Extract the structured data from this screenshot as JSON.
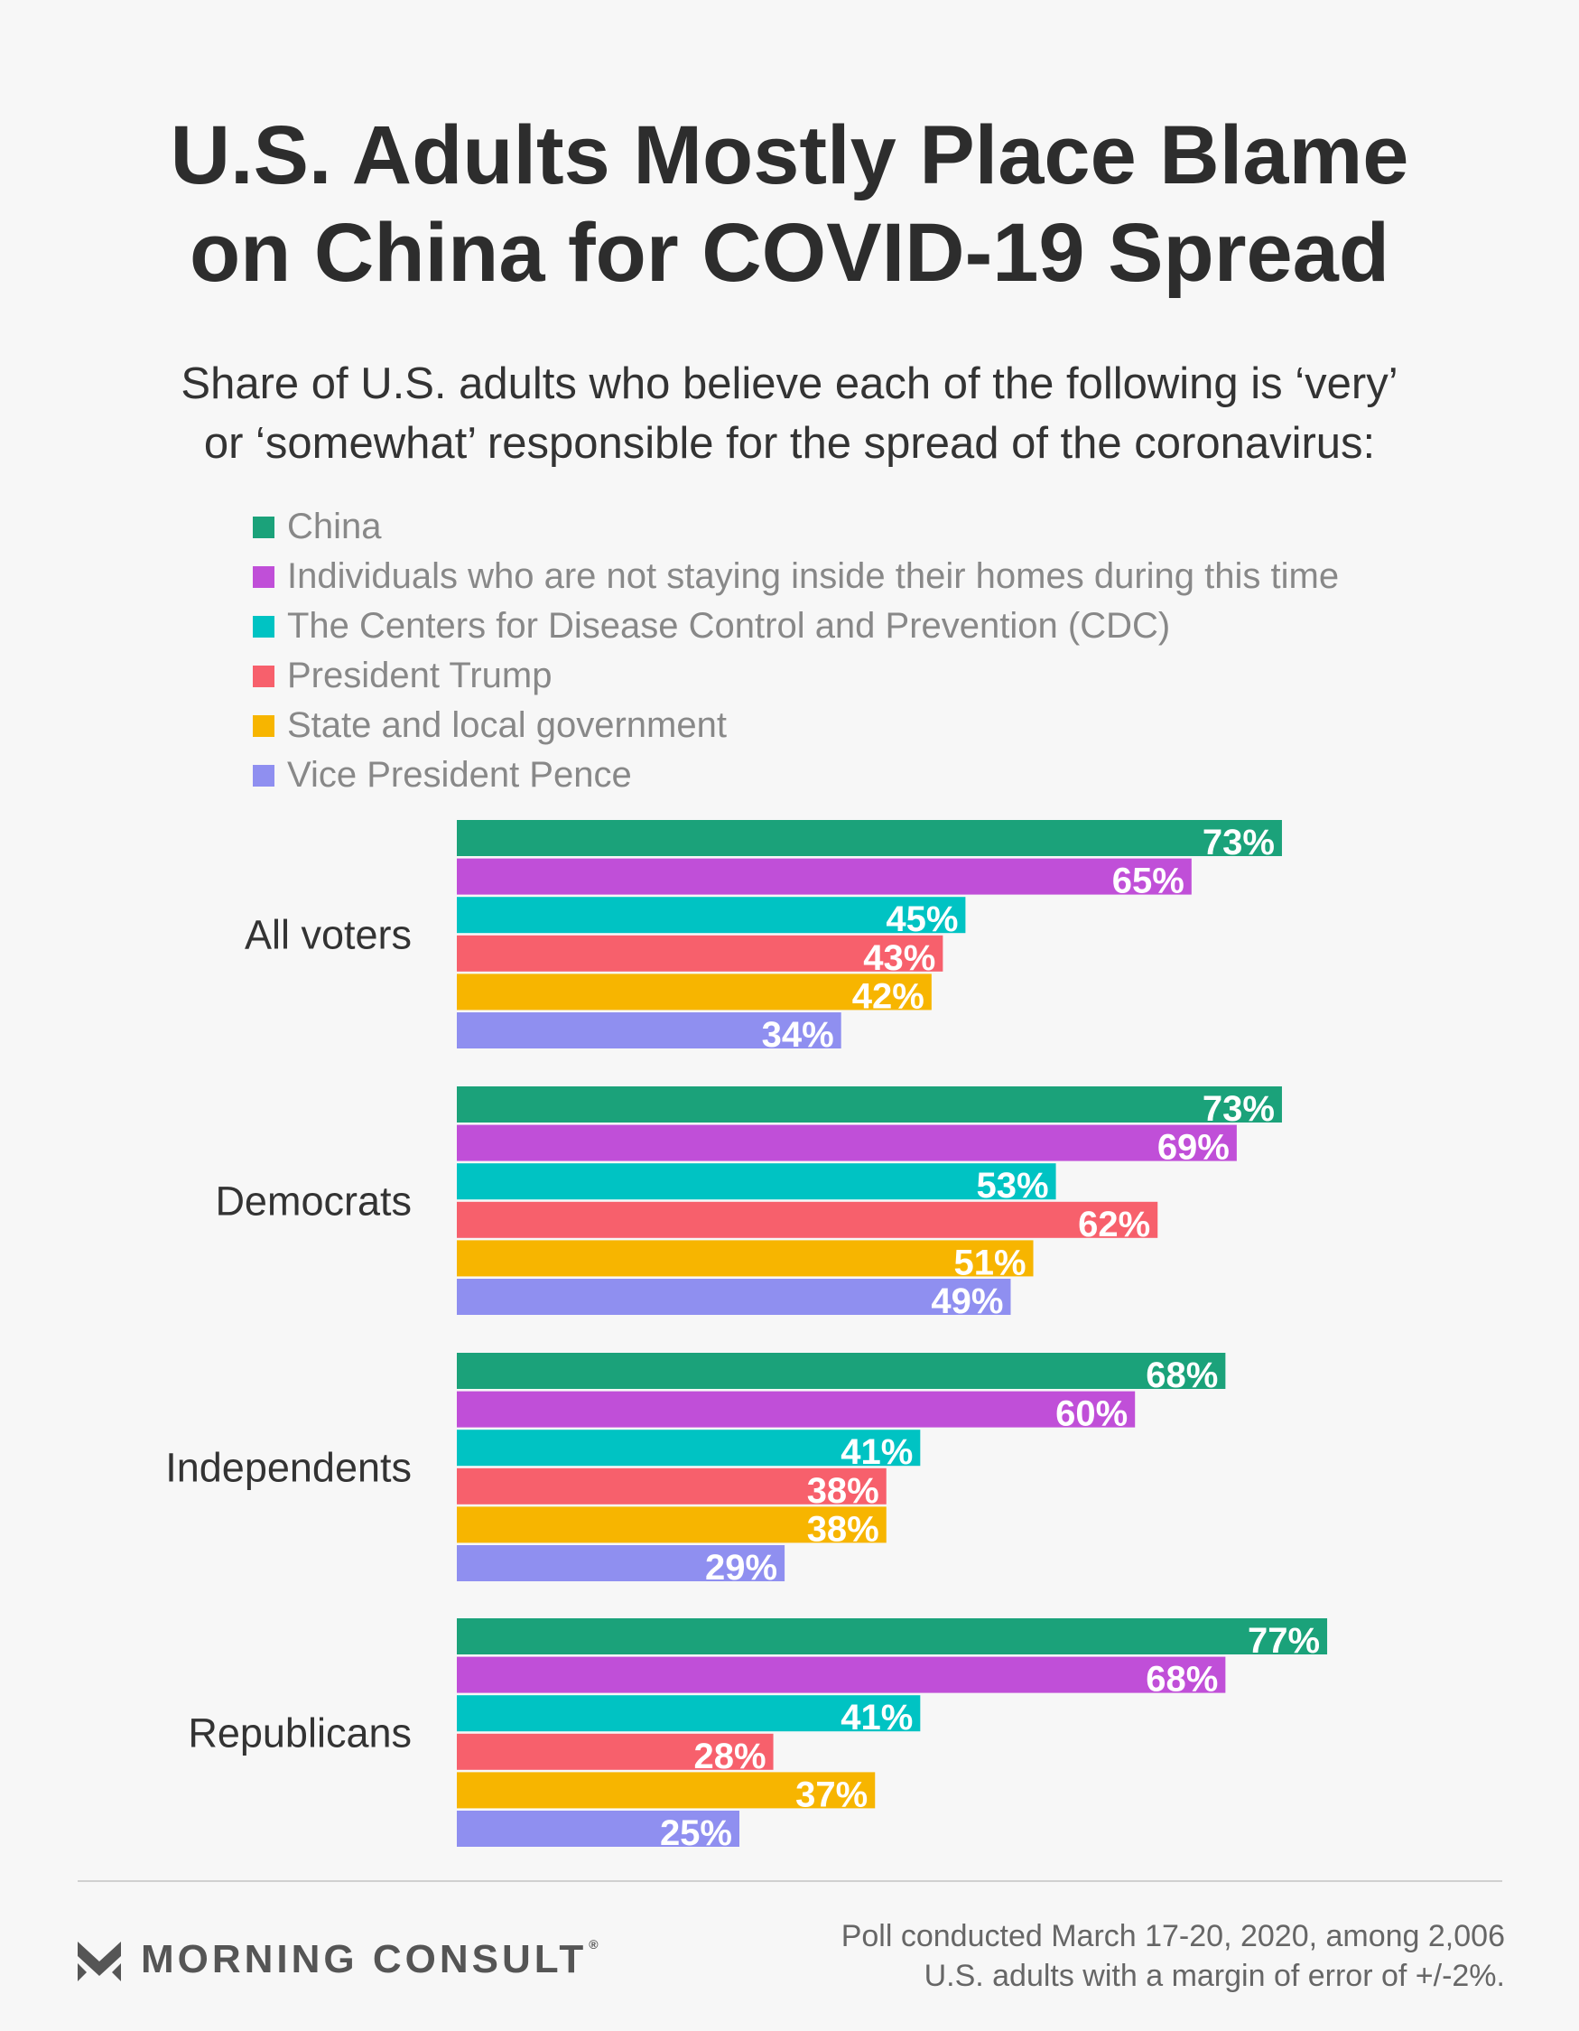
{
  "title_line1": "U.S. Adults Mostly Place Blame",
  "title_line2": "on China for COVID-19 Spread",
  "subtitle_line1": "Share of U.S. adults who believe each of the following is ‘very’",
  "subtitle_line2": "or ‘somewhat’ responsible for the spread of the coronavirus:",
  "chart_data": {
    "type": "bar",
    "orientation": "horizontal",
    "categories": [
      "All voters",
      "Democrats",
      "Independents",
      "Republicans"
    ],
    "series": [
      {
        "name": "China",
        "color": "#1ba27a",
        "values": [
          73,
          73,
          68,
          77
        ]
      },
      {
        "name": "Individuals who are not staying inside their homes during this time",
        "color": "#c04fd8",
        "values": [
          65,
          69,
          60,
          68
        ]
      },
      {
        "name": "The Centers for Disease Control and Prevention (CDC)",
        "color": "#00c3c3",
        "values": [
          45,
          53,
          41,
          41
        ]
      },
      {
        "name": "President Trump",
        "color": "#f7606c",
        "values": [
          43,
          62,
          38,
          28
        ]
      },
      {
        "name": "State and local government",
        "color": "#f7b500",
        "values": [
          42,
          51,
          38,
          37
        ]
      },
      {
        "name": "Vice President Pence",
        "color": "#8f8ff0",
        "values": [
          34,
          49,
          29,
          25
        ]
      }
    ],
    "value_suffix": "%",
    "xlim": [
      0,
      100
    ],
    "legend_position": "top-left",
    "grid": false
  },
  "footer": {
    "brand": "MORNING CONSULT",
    "brand_mark": "®",
    "source_line1": "Poll conducted March 17-20, 2020, among 2,006",
    "source_line2": "U.S. adults with a margin of error of +/-2%."
  }
}
